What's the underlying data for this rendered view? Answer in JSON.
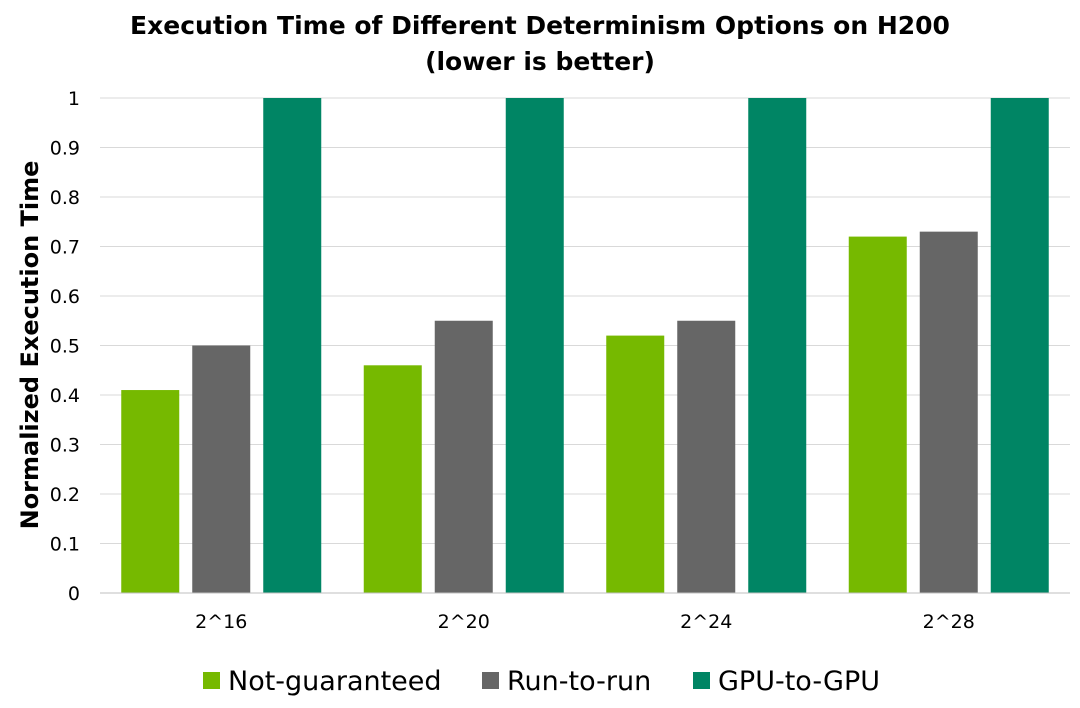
{
  "chart_data": {
    "type": "bar",
    "title": "Execution Time of Different Determinism Options on H200",
    "subtitle": "(lower is better)",
    "xlabel": "",
    "ylabel": "Normalized Execution Time",
    "categories": [
      "2^16",
      "2^20",
      "2^24",
      "2^28"
    ],
    "series": [
      {
        "name": "Not-guaranteed",
        "color": "#76b900",
        "values": [
          0.41,
          0.46,
          0.52,
          0.72
        ]
      },
      {
        "name": "Run-to-run",
        "color": "#666666",
        "values": [
          0.5,
          0.55,
          0.55,
          0.73
        ]
      },
      {
        "name": "GPU-to-GPU",
        "color": "#008564",
        "values": [
          1.0,
          1.0,
          1.0,
          1.0
        ]
      }
    ],
    "ylim": [
      0,
      1
    ],
    "yticks": [
      "0",
      "0.1",
      "0.2",
      "0.3",
      "0.4",
      "0.5",
      "0.6",
      "0.7",
      "0.8",
      "0.9",
      "1"
    ],
    "grid": true,
    "legend_position": "bottom"
  }
}
